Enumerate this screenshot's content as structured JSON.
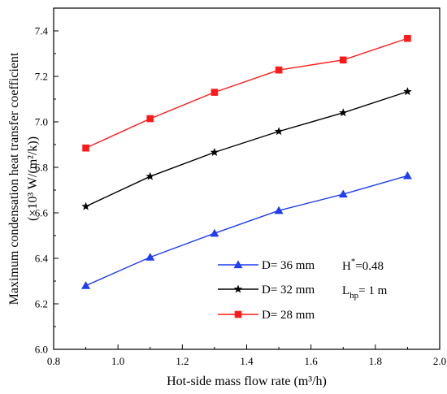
{
  "chart_data": {
    "type": "line",
    "xlabel": "Hot-side mass flow rate (m³/h)",
    "ylabel_line1": "Maximum condensation heat transfer coefficient",
    "ylabel_line2": "(×10³ W/(m²/k))",
    "xlim": [
      0.8,
      2.0
    ],
    "ylim": [
      6.0,
      7.5
    ],
    "xticks": [
      "0.8",
      "1.0",
      "1.2",
      "1.4",
      "1.6",
      "1.8",
      "2.0"
    ],
    "yticks": [
      "6.0",
      "6.2",
      "6.4",
      "6.6",
      "6.8",
      "7.0",
      "7.2",
      "7.4"
    ],
    "grid": false,
    "legend_position": "bottom-right",
    "x": [
      0.9,
      1.1,
      1.3,
      1.5,
      1.7,
      1.9
    ],
    "series": [
      {
        "name": "D= 36 mm",
        "color": "#1f3df2",
        "marker": "triangle",
        "values": [
          6.28,
          6.405,
          6.51,
          6.61,
          6.682,
          6.763
        ]
      },
      {
        "name": "D= 32 mm",
        "color": "#000000",
        "marker": "star",
        "values": [
          6.628,
          6.76,
          6.866,
          6.958,
          7.04,
          7.133
        ]
      },
      {
        "name": "D= 28 mm",
        "color": "#ff1a1a",
        "marker": "square",
        "values": [
          6.885,
          7.014,
          7.13,
          7.228,
          7.272,
          7.367
        ]
      }
    ],
    "annotations": [
      {
        "main": "H",
        "sup": "*",
        "rest": "=0.48"
      },
      {
        "main": "L",
        "sub": "hp",
        "rest": "= 1 m"
      }
    ]
  }
}
